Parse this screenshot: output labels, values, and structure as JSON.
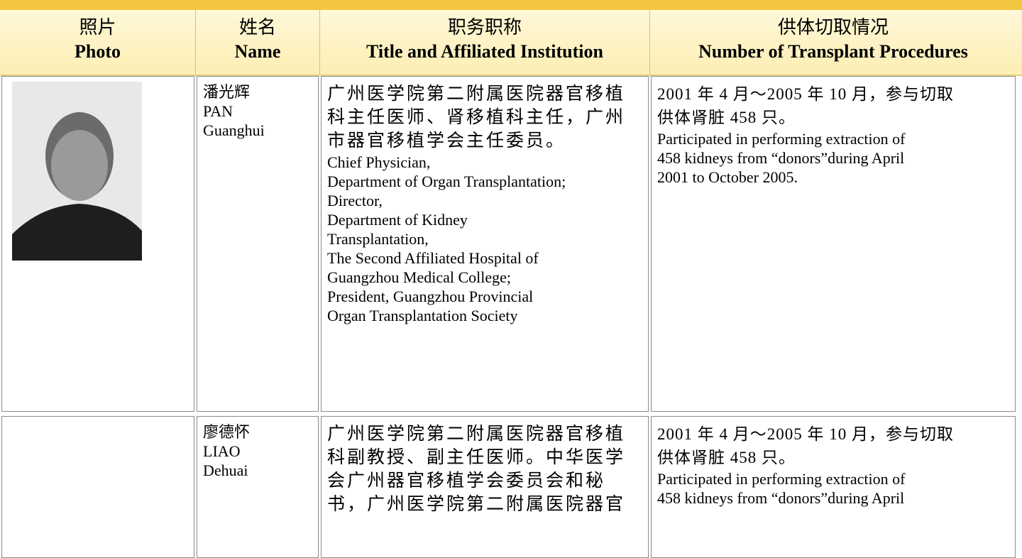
{
  "header": {
    "columns": [
      {
        "zh": "照片",
        "en": "Photo"
      },
      {
        "zh": "姓名",
        "en": "Name"
      },
      {
        "zh": "职务职称",
        "en": "Title and Affiliated Institution"
      },
      {
        "zh": "供体切取情况",
        "en": "Number of Transplant Procedures"
      }
    ]
  },
  "rows": [
    {
      "name": [
        "潘光辉",
        "PAN",
        "Guanghui"
      ],
      "title_zh": [
        "广州医学院第二附属医院器官移植",
        "科主任医师、肾移植科主任，广州",
        "市器官移植学会主任委员。"
      ],
      "title_en": [
        "Chief Physician,",
        "Department of Organ Transplantation;",
        "Director,",
        "Department of Kidney",
        "Transplantation,",
        "The Second Affiliated Hospital of",
        "Guangzhou Medical College;",
        "President, Guangzhou Provincial",
        "Organ Transplantation Society"
      ],
      "proc_zh": [
        "2001 年 4 月～2005 年 10 月，参与切取",
        "供体肾脏 458 只。"
      ],
      "proc_en": [
        "Participated in performing extraction of",
        "458 kidneys from “donors”during April",
        "2001 to October 2005."
      ]
    },
    {
      "name": [
        "廖德怀",
        "LIAO",
        "Dehuai"
      ],
      "title_zh": [
        "广州医学院第二附属医院器官移植",
        "科副教授、副主任医师。中华医学",
        "会广州器官移植学会委员会和秘",
        "书，广州医学院第二附属医院器官"
      ],
      "title_en": [],
      "proc_zh": [
        "2001 年 4 月～2005 年 10 月，参与切取",
        "供体肾脏 458 只。"
      ],
      "proc_en": [
        "Participated in performing extraction of",
        "458 kidneys from “donors”during April"
      ]
    }
  ]
}
